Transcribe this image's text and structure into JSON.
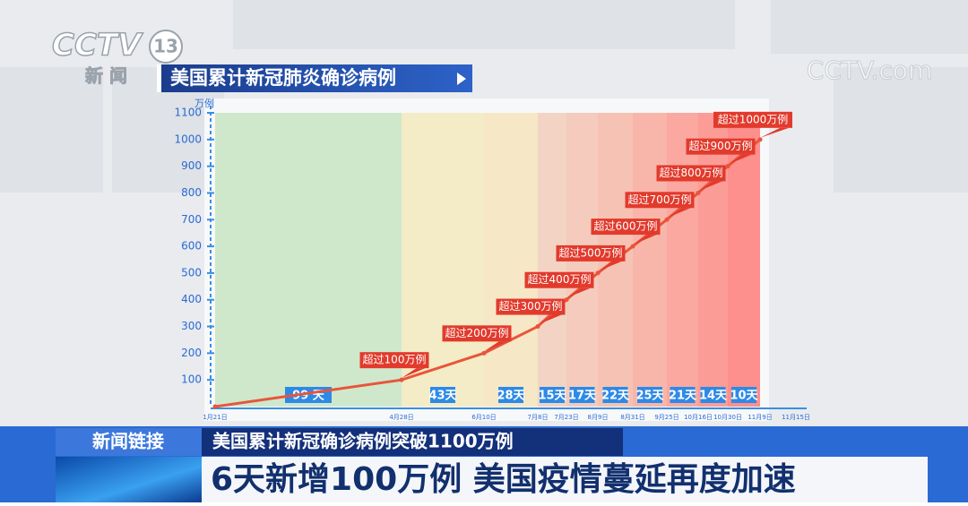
{
  "logo": {
    "channel": "CCTV",
    "number": "13",
    "name": "新 闻"
  },
  "watermark": "CCTV.com",
  "chart_data": {
    "type": "line",
    "title": "美国累计新冠肺炎确诊病例",
    "y_unit": "万例",
    "categories": [
      "1月21日",
      "4月28日",
      "6月10日",
      "7月8日",
      "7月23日",
      "8月9日",
      "8月31日",
      "9月25日",
      "10月16日",
      "10月30日",
      "11月9日",
      "11月15日"
    ],
    "values": [
      0,
      100,
      200,
      300,
      400,
      500,
      600,
      700,
      800,
      900,
      1000,
      null
    ],
    "value_labels": [
      null,
      "超过100万例",
      "超过200万例",
      "超过300万例",
      "超过400万例",
      "超过500万例",
      "超过600万例",
      "超过700万例",
      "超过800万例",
      "超过900万例",
      "超过1000万例",
      null
    ],
    "interval_labels": [
      "99 天",
      "43天",
      "28天",
      "15天",
      "17天",
      "22天",
      "25天",
      "21天",
      "14天",
      "10天"
    ],
    "color": "#e8553a",
    "ylim": [
      0,
      1100
    ],
    "yticks": [
      100,
      200,
      300,
      400,
      500,
      600,
      700,
      800,
      900,
      1000,
      1100
    ]
  },
  "lower_third": {
    "tag": "新闻链接",
    "subtitle": "美国累计新冠确诊病例突破1100万例",
    "headline": "6天新增100万例 美国疫情蔓延再度加速"
  }
}
